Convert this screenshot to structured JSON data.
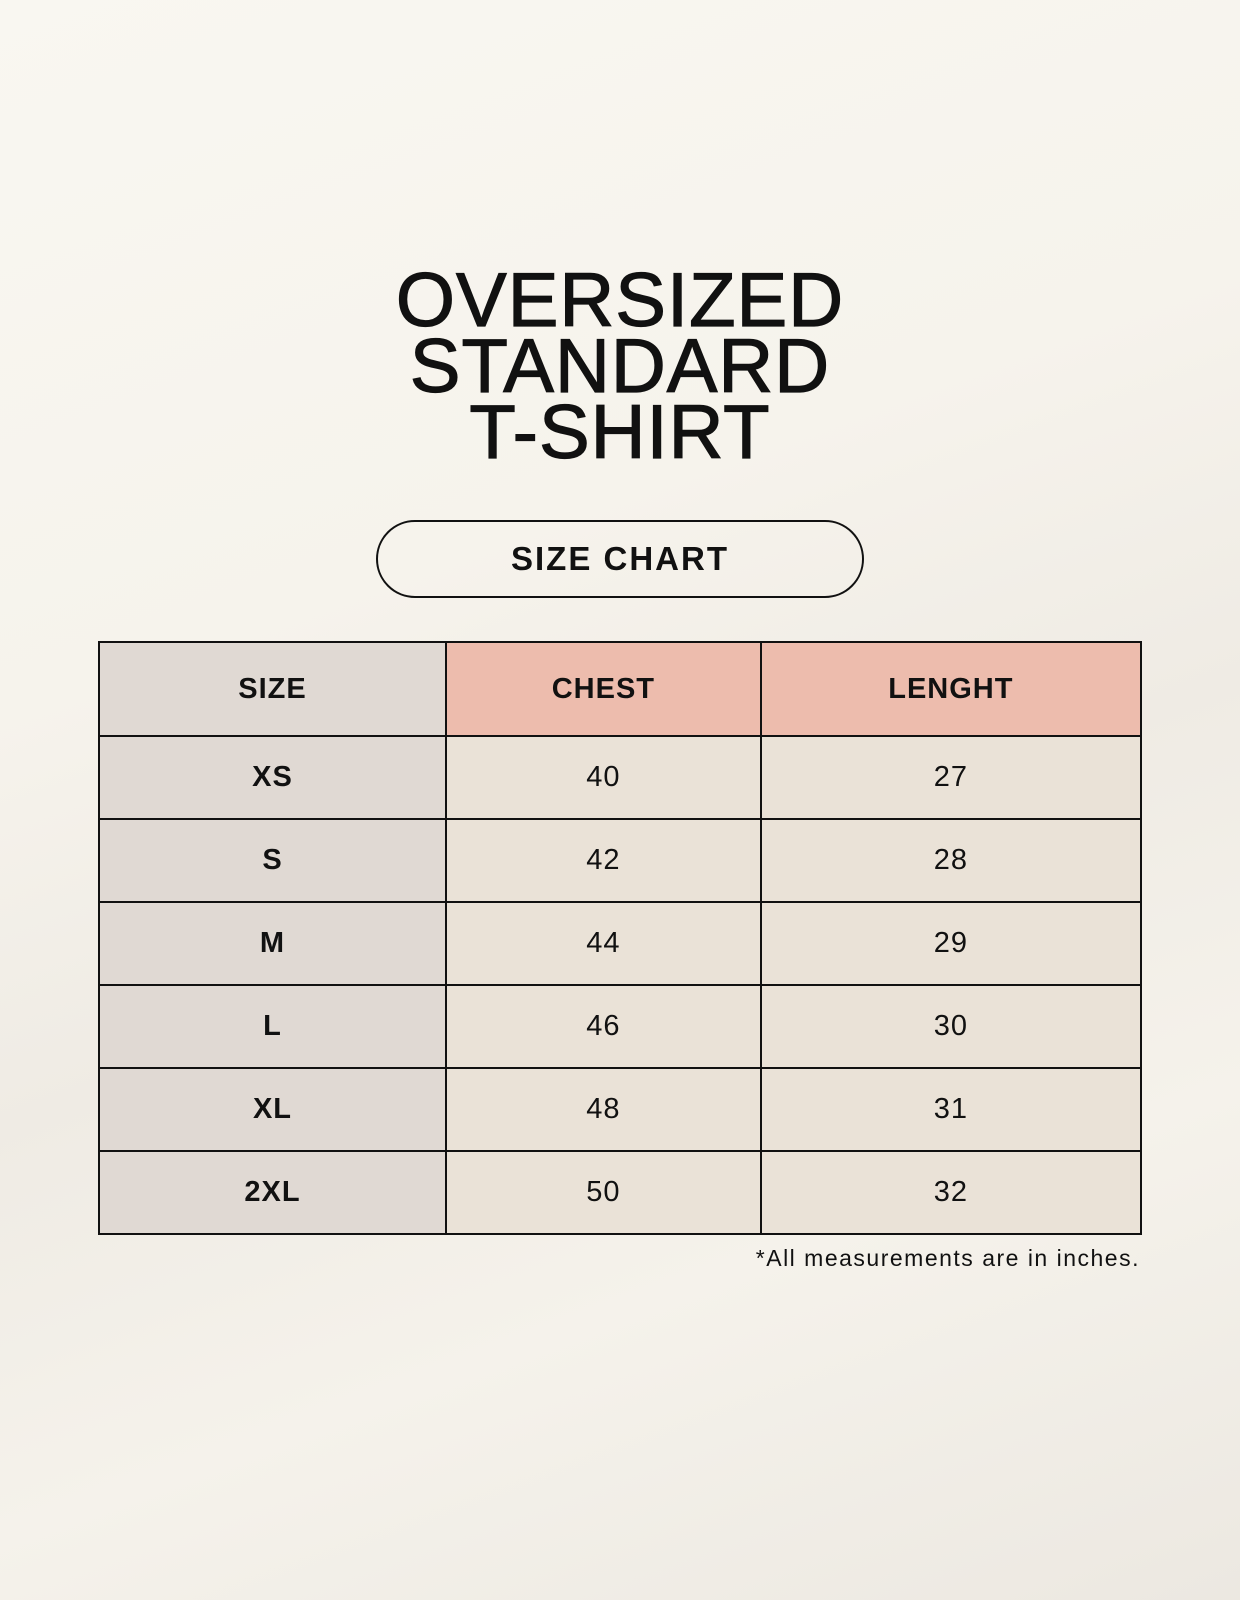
{
  "title_lines": [
    "OVERSIZED",
    "STANDARD",
    "T-SHIRT"
  ],
  "badge": "SIZE CHART",
  "table": {
    "headers": [
      "SIZE",
      "CHEST",
      "LENGHT"
    ],
    "rows": [
      [
        "XS",
        "40",
        "27"
      ],
      [
        "S",
        "42",
        "28"
      ],
      [
        "M",
        "44",
        "29"
      ],
      [
        "L",
        "46",
        "30"
      ],
      [
        "XL",
        "48",
        "31"
      ],
      [
        "2XL",
        "50",
        "32"
      ]
    ]
  },
  "footnote": "*All measurements are in inches.",
  "colors": {
    "header_accent": "#edbcad",
    "size_column": "#e0d9d3",
    "cell": "#eae2d7"
  }
}
